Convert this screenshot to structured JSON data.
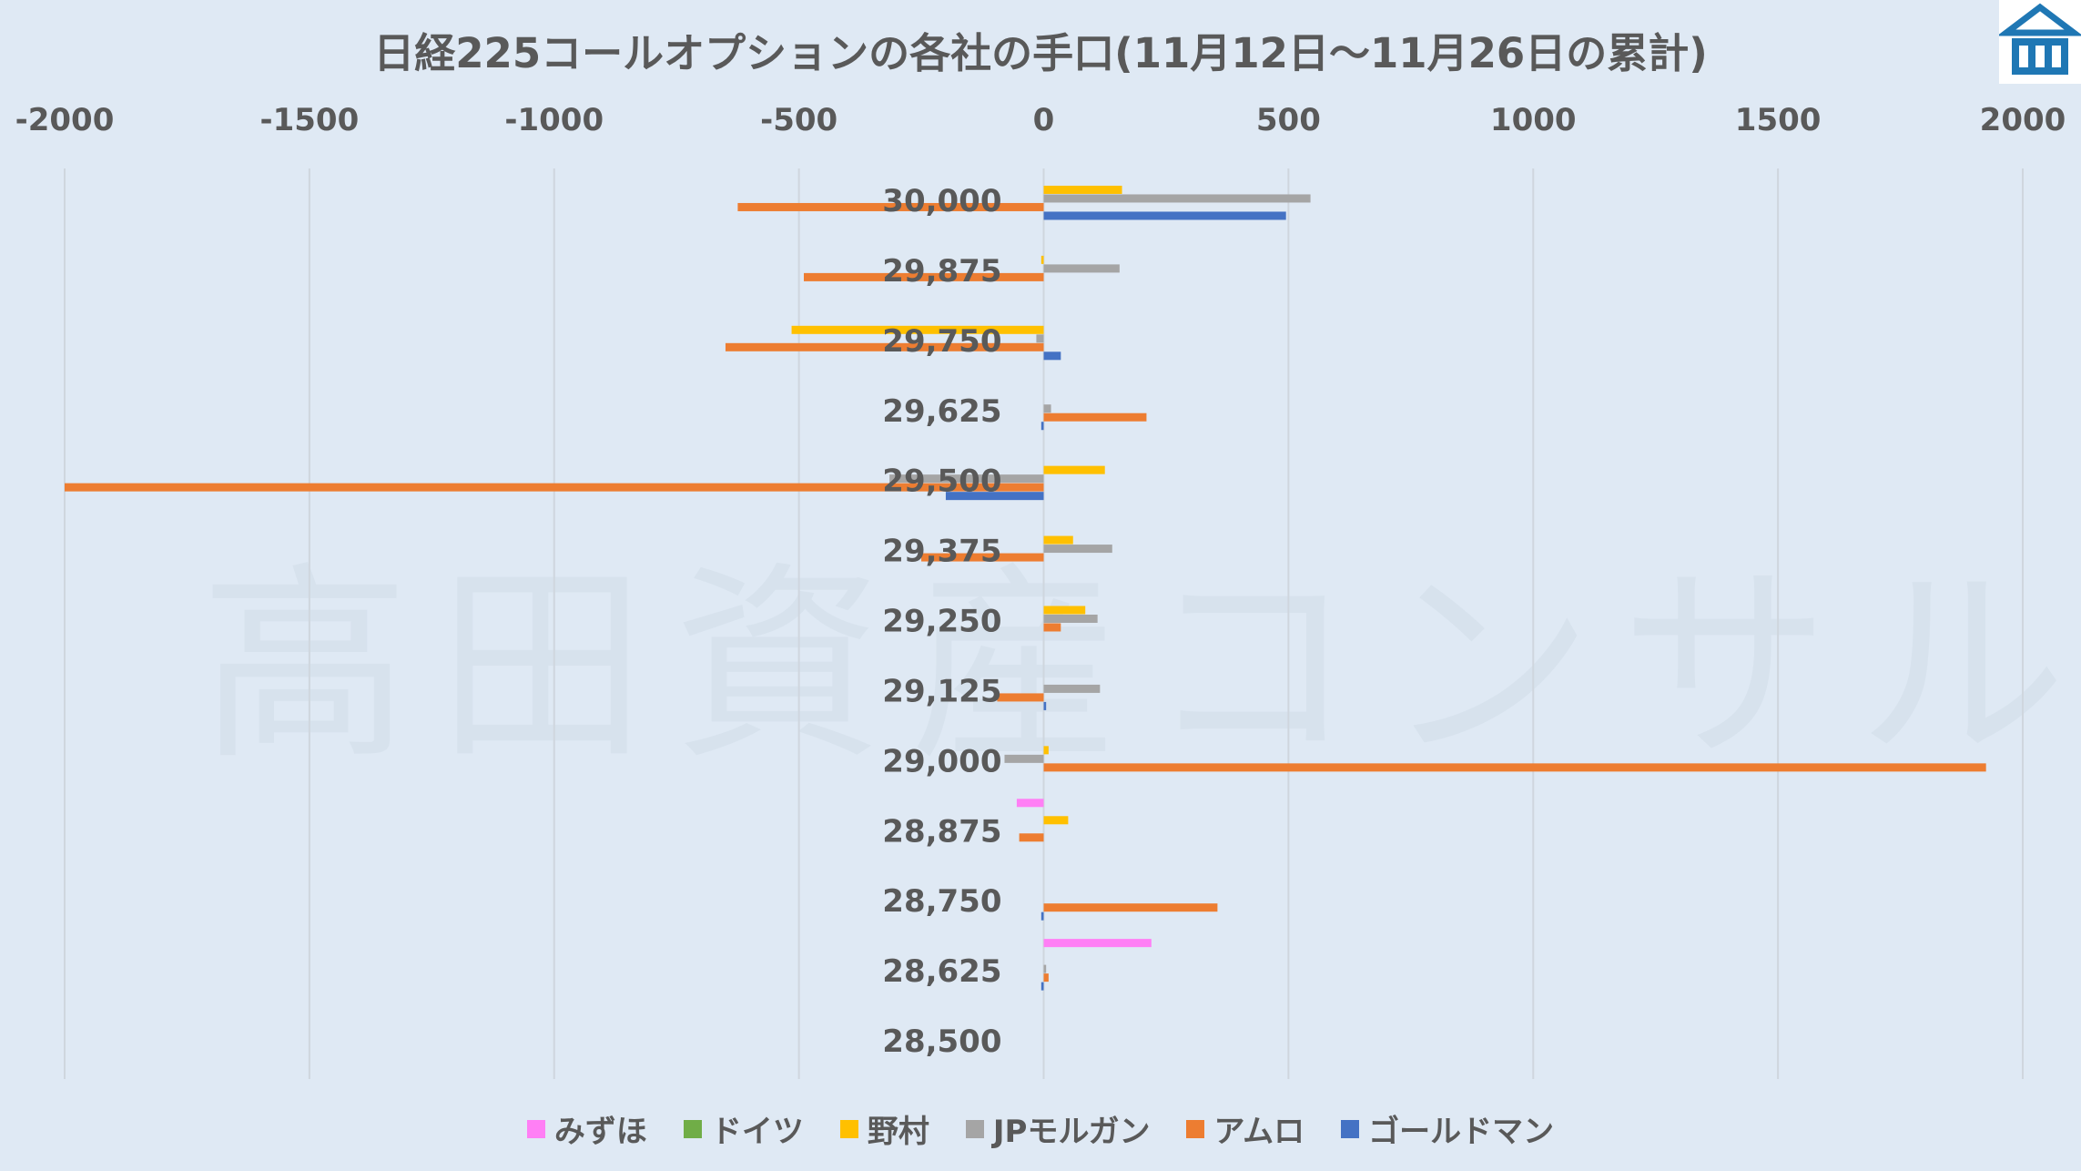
{
  "chart_data": {
    "type": "bar",
    "orientation": "horizontal",
    "title": "日経225コールオプションの各社の手口(11月12日～11月26日の累計)",
    "xlim": [
      -2000,
      2000
    ],
    "xticks": [
      "-2000",
      "-1500",
      "-1000",
      "-500",
      "0",
      "500",
      "1000",
      "1500",
      "2000"
    ],
    "xtick_values": [
      -2000,
      -1500,
      -1000,
      -500,
      0,
      500,
      1000,
      1500,
      2000
    ],
    "grid": true,
    "legend_position": "bottom",
    "categories": [
      "30,000",
      "29,875",
      "29,750",
      "29,625",
      "29,500",
      "29,375",
      "29,250",
      "29,125",
      "29,000",
      "28,875",
      "28,750",
      "28,625",
      "28,500"
    ],
    "series": [
      {
        "name": "みずほ",
        "color": "#ff7ff5",
        "values": [
          0,
          0,
          0,
          0,
          0,
          0,
          0,
          0,
          0,
          -55,
          0,
          220,
          0
        ]
      },
      {
        "name": "ドイツ",
        "color": "#70ad47",
        "values": [
          0,
          0,
          0,
          0,
          0,
          0,
          0,
          0,
          0,
          0,
          0,
          0,
          0
        ]
      },
      {
        "name": "野村",
        "color": "#ffc000",
        "values": [
          160,
          -5,
          -515,
          0,
          125,
          60,
          85,
          0,
          10,
          50,
          0,
          0,
          0
        ]
      },
      {
        "name": "JPモルガン",
        "color": "#a5a5a5",
        "values": [
          545,
          155,
          -15,
          15,
          -315,
          140,
          110,
          115,
          -80,
          0,
          0,
          5,
          0
        ]
      },
      {
        "name": "アムロ",
        "color": "#ed7d31",
        "values": [
          -625,
          -490,
          -650,
          210,
          -2000,
          -250,
          35,
          -95,
          1925,
          -50,
          355,
          10,
          0
        ]
      },
      {
        "name": "ゴールドマン",
        "color": "#4472c4",
        "values": [
          495,
          0,
          35,
          -5,
          -200,
          0,
          0,
          5,
          0,
          0,
          -5,
          -5,
          0
        ]
      }
    ]
  },
  "watermark": "高田資産コンサル",
  "logo": {
    "icon": "building-icon",
    "color": "#1f77b4"
  }
}
